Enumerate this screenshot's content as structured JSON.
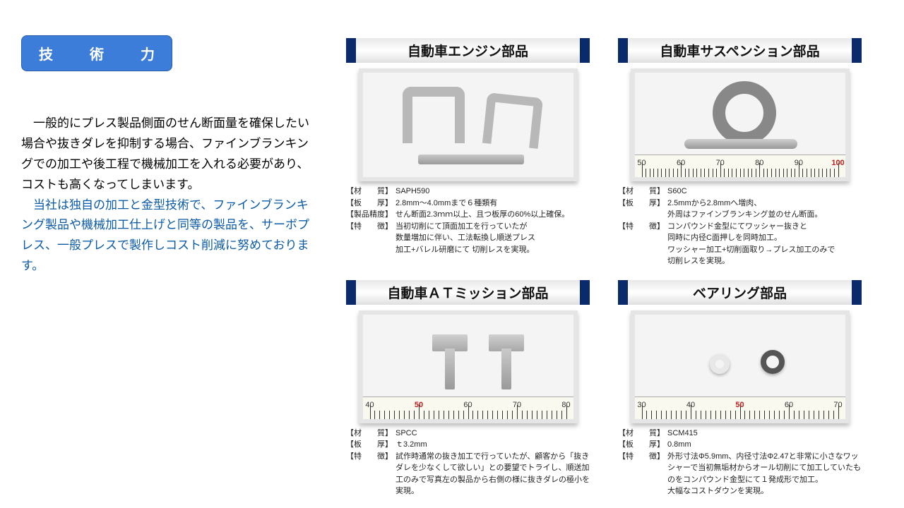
{
  "badge": "技　術　力",
  "desc_black": "　一般的にプレス製品側面のせん断面量を確保したい場合や抜きダレを抑制する場合、ファインブランキングでの加工や後工程で機械加工を入れる必要があり、コストも高くなってしまいます。",
  "desc_blue": "　当社は独自の加工と金型技術で、ファインブランキング製品や機械加工仕上げと同等の製品を、サーボプレス、一般プレスで製作しコスト削減に努めております。",
  "cards": [
    {
      "title": "自動車エンジン部品",
      "specs": [
        {
          "label": "【材　　質】",
          "val": "SAPH590"
        },
        {
          "label": "【板　　厚】",
          "val": "2.8mm～4.0mmまで６種類有"
        },
        {
          "label": "【製品精度】",
          "val": "せん断面2.3ｍｍ以上、且つ板厚の60%以上確保。"
        },
        {
          "label": "【特　　徴】",
          "val": "当初切削にて頂面加工を行っていたが\n数量増加に伴い、工法転換し順送プレス\n加工+バレル研磨にて 切削レスを実現。"
        }
      ]
    },
    {
      "title": "自動車サスペンション部品",
      "specs": [
        {
          "label": "【材　　質】",
          "val": "S60C"
        },
        {
          "label": "【板　　厚】",
          "val": "2.5mmから2.8mmへ増肉、\n外周はファインブランキング並のせん断面。"
        },
        {
          "label": "【特　　徴】",
          "val": "コンパウンド金型にてワッシャー抜きと\n同時に内径C面押しを同時加工。\nワッシャー加工+切削面取り→プレス加工のみで\n切削レスを実現。"
        }
      ]
    },
    {
      "title": "自動車ＡＴミッション部品",
      "specs": [
        {
          "label": "【材　　質】",
          "val": "SPCC"
        },
        {
          "label": "【板　　厚】",
          "val": "ｔ3.2mm"
        },
        {
          "label": "【特　　徴】",
          "val": "試作時通常の抜き加工で行っていたが、顧客から「抜きダレを少なくして欲しい」との要望でトライし、順送加工のみで写真左の製品から右側の様に抜きダレの極小を実現。"
        }
      ],
      "ruler": {
        "start": 40,
        "step": 10,
        "count": 5,
        "highlight": 50
      }
    },
    {
      "title": "ベアリング部品",
      "specs": [
        {
          "label": "【材　　質】",
          "val": "SCM415"
        },
        {
          "label": "【板　　厚】",
          "val": "0.8mm"
        },
        {
          "label": "【特　　徴】",
          "val": "外形寸法Φ5.9mm、内径寸法Φ2.47と非常に小さなワッシャーで当初無垢材からオール切削にて加工していたものをコンパウンド金型にて１発成形で加工。\n大幅なコストダウンを実現。"
        }
      ],
      "ruler": {
        "start": 30,
        "step": 10,
        "count": 5,
        "highlight": 50
      }
    }
  ],
  "ruler_suspension": {
    "start": 50,
    "step": 10,
    "count": 6,
    "highlight": 100
  }
}
